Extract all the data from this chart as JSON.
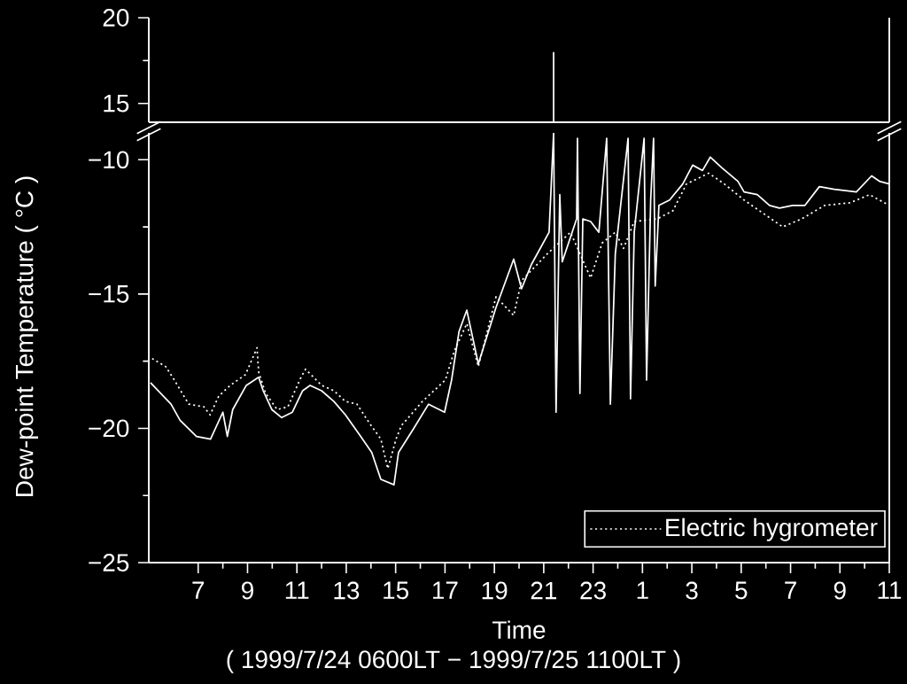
{
  "chart_data": [
    {
      "type": "line",
      "xlim": [
        "1999-07-24T05:00",
        "1999-07-25T11:00"
      ],
      "ylim": [
        13.9,
        20
      ],
      "yticks": [
        15,
        20
      ],
      "tick_labels": "y",
      "marker": "none",
      "series": [
        {
          "color": "#ffffff",
          "line_style": "solid",
          "x": [
            "1999-07-24T21:24",
            "1999-07-24T21:24"
          ],
          "values": [
            13.9,
            18
          ]
        }
      ]
    },
    {
      "type": "line",
      "xlim": [
        "1999-07-24T05:00",
        "1999-07-25T11:00"
      ],
      "ylim": [
        -25,
        -9
      ],
      "marker": "none",
      "legend": "bottom right",
      "ylabel": "Dew-point Temperature ( °C )",
      "xlabel": "Time",
      "annotations": [
        "( 1999/7/24 0600LT − 1999/7/25 1100LT )"
      ],
      "yticks": [
        {
          "value": -25,
          "label": "−25"
        },
        {
          "value": -20,
          "label": "−20"
        },
        {
          "value": -15,
          "label": "−15"
        },
        {
          "value": -10,
          "label": "−10"
        }
      ],
      "xticks": [
        {
          "value": "1999-07-24T07:00",
          "label": "7"
        },
        {
          "value": "1999-07-24T09:00",
          "label": "9"
        },
        {
          "value": "1999-07-24T11:00",
          "label": "11"
        },
        {
          "value": "1999-07-24T13:00",
          "label": "13"
        },
        {
          "value": "1999-07-24T15:00",
          "label": "15"
        },
        {
          "value": "1999-07-24T17:00",
          "label": "17"
        },
        {
          "value": "1999-07-24T19:00",
          "label": "19"
        },
        {
          "value": "1999-07-24T21:00",
          "label": "21"
        },
        {
          "value": "1999-07-24T23:00",
          "label": "23"
        },
        {
          "value": "1999-07-25T01:00",
          "label": "1"
        },
        {
          "value": "1999-07-25T03:00",
          "label": "3"
        },
        {
          "value": "1999-07-25T05:00",
          "label": "5"
        },
        {
          "value": "1999-07-25T07:00",
          "label": "7"
        },
        {
          "value": "1999-07-25T09:00",
          "label": "9"
        },
        {
          "value": "1999-07-25T11:00",
          "label": "11"
        }
      ],
      "series": [
        {
          "color": "#ffffff",
          "line_style": "solid",
          "x": [
            "1999-07-24T05:04",
            "1999-07-24T05:54",
            "1999-07-24T06:16",
            "1999-07-24T06:56",
            "1999-07-24T07:30",
            "1999-07-24T08:00",
            "1999-07-24T08:11",
            "1999-07-24T08:24",
            "1999-07-24T08:57",
            "1999-07-24T09:27",
            "1999-07-24T09:38",
            "1999-07-24T09:59",
            "1999-07-24T10:23",
            "1999-07-24T10:49",
            "1999-07-24T11:14",
            "1999-07-24T11:32",
            "1999-07-24T12:00",
            "1999-07-24T12:30",
            "1999-07-24T12:58",
            "1999-07-24T13:35",
            "1999-07-24T14:02",
            "1999-07-24T14:24",
            "1999-07-24T14:56",
            "1999-07-24T15:07",
            "1999-07-24T15:44",
            "1999-07-24T16:20",
            "1999-07-24T16:59",
            "1999-07-24T17:16",
            "1999-07-24T17:34",
            "1999-07-24T17:53",
            "1999-07-24T18:21",
            "1999-07-24T19:04",
            "1999-07-24T19:47",
            "1999-07-24T20:06",
            "1999-07-24T20:30",
            "1999-07-24T21:13",
            "1999-07-24T21:24",
            "1999-07-24T21:30",
            "1999-07-24T21:39",
            "1999-07-24T21:45",
            "1999-07-24T22:20",
            "1999-07-24T22:22",
            "1999-07-24T22:28",
            "1999-07-24T22:35",
            "1999-07-24T22:54",
            "1999-07-24T23:14",
            "1999-07-24T23:33",
            "1999-07-24T23:42",
            "1999-07-24T23:54",
            "1999-07-25T00:25",
            "1999-07-25T00:31",
            "1999-07-25T00:40",
            "1999-07-25T01:04",
            "1999-07-25T01:10",
            "1999-07-25T01:20",
            "1999-07-25T01:27",
            "1999-07-25T01:31",
            "1999-07-25T01:40",
            "1999-07-25T02:06",
            "1999-07-25T02:38",
            "1999-07-25T03:02",
            "1999-07-25T03:26",
            "1999-07-25T03:45",
            "1999-07-25T04:13",
            "1999-07-25T04:52",
            "1999-07-25T05:07",
            "1999-07-25T05:39",
            "1999-07-25T06:09",
            "1999-07-25T06:33",
            "1999-07-25T07:05",
            "1999-07-25T07:35",
            "1999-07-25T08:10",
            "1999-07-25T08:46",
            "1999-07-25T09:40",
            "1999-07-25T10:17",
            "1999-07-25T10:36",
            "1999-07-25T11:00"
          ],
          "values": [
            -18.3,
            -19.1,
            -19.7,
            -20.3,
            -20.4,
            -19.4,
            -20.3,
            -19.3,
            -18.4,
            -18.1,
            -18.6,
            -19.3,
            -19.6,
            -19.4,
            -18.6,
            -18.4,
            -18.6,
            -19.0,
            -19.5,
            -20.3,
            -20.9,
            -21.9,
            -22.1,
            -20.9,
            -20.0,
            -19.1,
            -19.4,
            -18.2,
            -16.4,
            -15.6,
            -17.6,
            -15.5,
            -13.7,
            -14.8,
            -13.9,
            -12.7,
            -9,
            -19.4,
            -11.3,
            -13.8,
            -12.2,
            -9.2,
            -18.7,
            -12.2,
            -12.3,
            -12.7,
            -9.2,
            -19.1,
            -13.5,
            -9.2,
            -18.9,
            -12.7,
            -9.2,
            -18.2,
            -11.5,
            -9.2,
            -14.7,
            -11.7,
            -11.5,
            -10.9,
            -10.2,
            -10.4,
            -9.9,
            -10.3,
            -10.8,
            -11.2,
            -11.3,
            -11.7,
            -11.8,
            -11.7,
            -11.7,
            -11.0,
            -11.1,
            -11.2,
            -10.6,
            -10.8,
            -10.9
          ]
        },
        {
          "name": "Electric hygrometer",
          "color": "#ffffff",
          "line_style": "dotted",
          "x": [
            "1999-07-24T05:08",
            "1999-07-24T05:41",
            "1999-07-24T06:02",
            "1999-07-24T06:37",
            "1999-07-24T07:14",
            "1999-07-24T07:29",
            "1999-07-24T07:50",
            "1999-07-24T08:18",
            "1999-07-24T08:55",
            "1999-07-24T09:23",
            "1999-07-24T09:27",
            "1999-07-24T09:44",
            "1999-07-24T10:12",
            "1999-07-24T10:38",
            "1999-07-24T11:10",
            "1999-07-24T11:21",
            "1999-07-24T12:00",
            "1999-07-24T12:30",
            "1999-07-24T12:58",
            "1999-07-24T13:26",
            "1999-07-24T13:56",
            "1999-07-24T14:24",
            "1999-07-24T14:41",
            "1999-07-24T15:01",
            "1999-07-24T15:14",
            "1999-07-24T16:05",
            "1999-07-24T17:01",
            "1999-07-24T17:23",
            "1999-07-24T17:53",
            "1999-07-24T18:21",
            "1999-07-24T19:04",
            "1999-07-24T19:47",
            "1999-07-24T20:06",
            "1999-07-24T21:09",
            "1999-07-24T22:05",
            "1999-07-24T22:54",
            "1999-07-24T23:22",
            "1999-07-24T23:54",
            "1999-07-25T00:14",
            "1999-07-25T00:40",
            "1999-07-25T01:36",
            "1999-07-25T02:14",
            "1999-07-25T02:47",
            "1999-07-25T03:41",
            "1999-07-25T04:19",
            "1999-07-25T05:07",
            "1999-07-25T05:54",
            "1999-07-25T06:41",
            "1999-07-25T07:27",
            "1999-07-25T08:23",
            "1999-07-25T09:25",
            "1999-07-25T10:12",
            "1999-07-25T11:00"
          ],
          "values": [
            -17.4,
            -17.7,
            -18.2,
            -19.1,
            -19.2,
            -19.5,
            -18.8,
            -18.4,
            -18.0,
            -17.0,
            -17.9,
            -18.7,
            -19.3,
            -19.2,
            -18.1,
            -17.8,
            -18.4,
            -18.6,
            -19.0,
            -19.1,
            -19.8,
            -20.4,
            -21.5,
            -20.4,
            -19.9,
            -19.0,
            -18.2,
            -17.1,
            -16.1,
            -17.7,
            -15.1,
            -15.8,
            -14.5,
            -13.5,
            -12.7,
            -14.4,
            -13.1,
            -12.7,
            -13.3,
            -12.3,
            -12.2,
            -11.9,
            -10.9,
            -10.5,
            -10.9,
            -11.5,
            -12.0,
            -12.5,
            -12.2,
            -11.7,
            -11.6,
            -11.3,
            -11.7
          ]
        }
      ]
    }
  ]
}
